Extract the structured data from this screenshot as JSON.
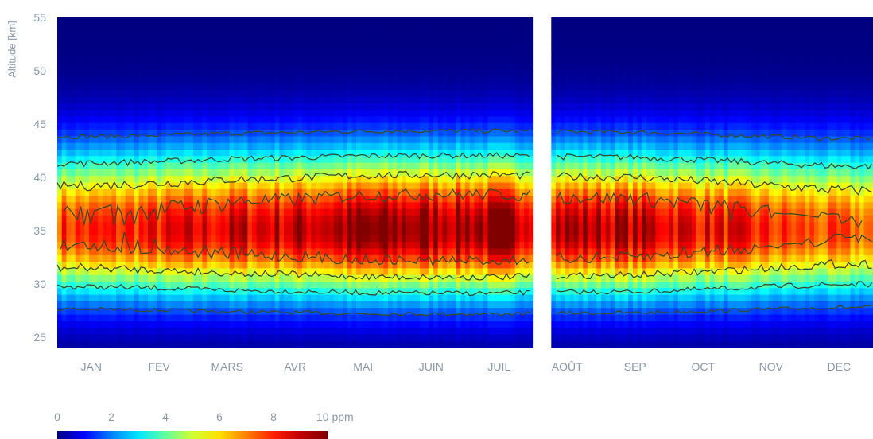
{
  "chart_data": {
    "type": "heatmap",
    "title": "",
    "xlabel": "",
    "ylabel": "Altitude [km]",
    "ylim": [
      24,
      55
    ],
    "yticks": [
      25,
      30,
      35,
      40,
      45,
      50,
      55
    ],
    "xticks": [
      "JAN",
      "FEV",
      "MARS",
      "AVR",
      "MAI",
      "JUIN",
      "JUIL",
      "AOÛT",
      "SEP",
      "OCT",
      "NOV",
      "DEC"
    ],
    "colorbar": {
      "ticks": [
        "0",
        "2",
        "4",
        "6",
        "8",
        "10 ppm"
      ],
      "min": 0,
      "max": 10,
      "unit": "ppm",
      "colormap": "jet"
    },
    "data_gap": {
      "start_day": 212,
      "end_day": 222
    },
    "peak_altitude_km": 35,
    "monthly_peak_ppm": {
      "JAN": 8.3,
      "FEV": 8.6,
      "MARS": 9.1,
      "AVR": 9.4,
      "MAI": 9.8,
      "JUIN": 9.9,
      "JUIL": 9.9,
      "AOÛT": 9.6,
      "SEP": 9.5,
      "OCT": 8.9,
      "NOV": 8.3,
      "DEC": 7.8
    },
    "contour_levels_ppm": [
      2,
      4,
      6,
      8
    ],
    "colors": {
      "contour": "#3a4a2a",
      "axis_text": "#8a98ad"
    }
  }
}
